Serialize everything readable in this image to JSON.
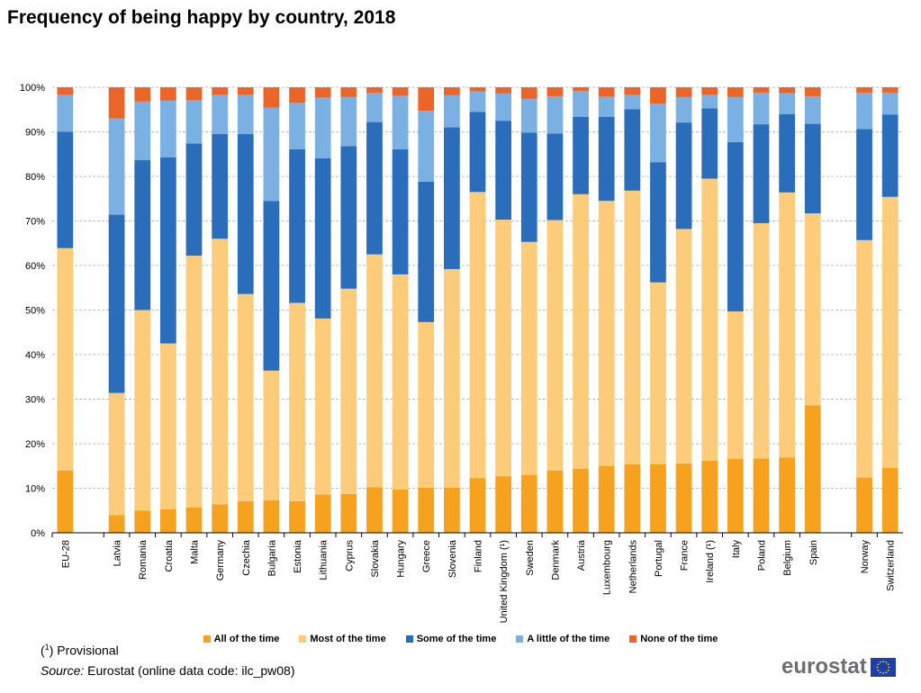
{
  "title": "Frequency of being happy by country, 2018",
  "footnote": {
    "marker": "1",
    "text": "Provisional"
  },
  "source": {
    "label": "Source:",
    "text": "Eurostat (online data code: ilc_pw08)"
  },
  "logo_text": "eurostat",
  "colors": {
    "all": "#f6a21f",
    "most": "#fccc7b",
    "some": "#2a6ebb",
    "little": "#7bb0e3",
    "none": "#ec6528",
    "flag": "#1f3fa8",
    "grid": "#bfbfbf",
    "axis": "#000000",
    "logo": "#6d6e71"
  },
  "chart_data": {
    "type": "bar",
    "stacked": true,
    "percent": true,
    "title": "Frequency of being happy by country, 2018",
    "ylim": [
      0,
      100
    ],
    "yticks": [
      "0%",
      "10%",
      "20%",
      "30%",
      "40%",
      "50%",
      "60%",
      "70%",
      "80%",
      "90%",
      "100%"
    ],
    "grid": true,
    "legend_position": "bottom",
    "categories": [
      "EU-28",
      "Latvia",
      "Romania",
      "Croatia",
      "Malta",
      "Germany",
      "Czechia",
      "Bulgaria",
      "Estonia",
      "Lithuania",
      "Cyprus",
      "Slovakia",
      "Hungary",
      "Greece",
      "Slovenia",
      "Finland",
      "United Kingdom (¹)",
      "Sweden",
      "Denmark",
      "Austria",
      "Luxembourg",
      "Netherlands",
      "Portugal",
      "France",
      "Ireland (¹)",
      "Italy",
      "Poland",
      "Belgium",
      "Spain",
      "Norway",
      "Switzerland"
    ],
    "groups": [
      1,
      28,
      2
    ],
    "series": [
      {
        "name": "All of the time",
        "color_key": "all",
        "values": [
          14,
          4,
          5,
          5.3,
          5.7,
          6.4,
          7.1,
          7.3,
          7.1,
          8.6,
          8.7,
          10.2,
          9.7,
          10.1,
          10.1,
          12.3,
          12.7,
          13,
          14,
          14.4,
          15,
          15.4,
          15.4,
          15.6,
          16.2,
          16.6,
          16.7,
          16.9,
          28.6,
          12.4,
          14.6
        ]
      },
      {
        "name": "Most of the time",
        "color_key": "most",
        "values": [
          49.9,
          27.4,
          45,
          37.2,
          56.5,
          59.6,
          46.5,
          29.1,
          44.5,
          39.5,
          46.1,
          52.3,
          48.3,
          37.2,
          49.1,
          64.2,
          57.6,
          52.3,
          56.2,
          61.6,
          59.5,
          61.4,
          40.8,
          52.6,
          63.3,
          33.1,
          52.8,
          59.5,
          43.1,
          53.3,
          60.8
        ]
      },
      {
        "name": "Some of the time",
        "color_key": "some",
        "values": [
          26.1,
          40,
          33.7,
          41.8,
          25.2,
          23.5,
          35.9,
          38.1,
          34.5,
          36,
          32,
          29.7,
          28.1,
          31.5,
          31.8,
          18,
          22.2,
          24.5,
          19.4,
          17.4,
          18.9,
          18.3,
          27,
          23.9,
          15.8,
          38,
          22.2,
          17.6,
          20.1,
          24.9,
          18.5
        ]
      },
      {
        "name": "A little of the time",
        "color_key": "little",
        "values": [
          8.3,
          21.6,
          13.1,
          12.7,
          9.7,
          8.8,
          8.8,
          20.9,
          10.4,
          13.6,
          11,
          6.6,
          12,
          15.9,
          7.2,
          4.6,
          6.1,
          7.6,
          8.4,
          5.8,
          4.5,
          3.2,
          13.1,
          5.7,
          3,
          10.1,
          7.1,
          4.7,
          6.2,
          8.2,
          4.9
        ]
      },
      {
        "name": "None of the time",
        "color_key": "none",
        "values": [
          1.7,
          7,
          3.2,
          3,
          2.9,
          1.7,
          1.7,
          4.6,
          3.5,
          2.3,
          2.2,
          1.2,
          1.9,
          5.3,
          1.8,
          0.9,
          1.4,
          2.6,
          2,
          0.8,
          2.1,
          1.7,
          3.7,
          2.2,
          1.7,
          2.2,
          1.2,
          1.3,
          2,
          1.2,
          1.2
        ]
      }
    ]
  }
}
